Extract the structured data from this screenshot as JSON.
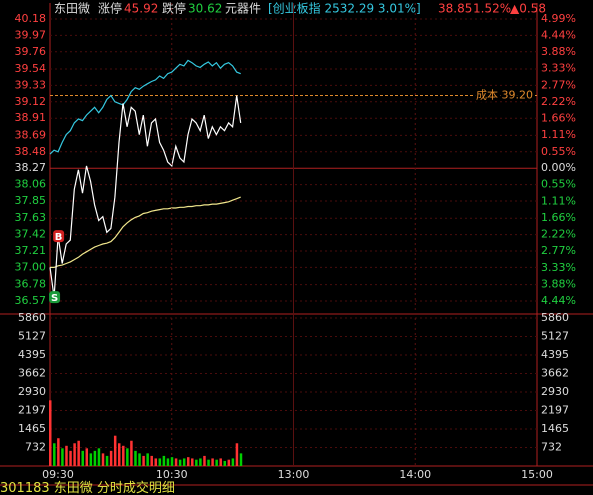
{
  "header": {
    "name": "东田微",
    "limit_up_label": "涨停",
    "limit_up": "45.92",
    "limit_down_label": "跌停",
    "limit_down": "30.62",
    "sector": "元器件",
    "index": "[创业板指 2532.29 3.01%]",
    "price": "38.85",
    "change_pct": "1.52%",
    "change": "▲0.58"
  },
  "chart_data": [
    {
      "type": "line",
      "ylim": [
        36.57,
        40.18
      ],
      "yticks": [
        40.18,
        39.97,
        39.76,
        39.54,
        39.33,
        39.12,
        38.91,
        38.69,
        38.48,
        38.27,
        38.06,
        37.85,
        37.63,
        37.42,
        37.21,
        {
          "value": 37.0,
          "label": "37.00"
        },
        36.78,
        36.57
      ],
      "y2lim": [
        -4.44,
        4.99
      ],
      "y2ticks": [
        {
          "value": 4.99,
          "label": "4.99%"
        },
        {
          "value": 4.44,
          "label": "4.44%"
        },
        {
          "value": 3.88,
          "label": "3.88%"
        },
        {
          "value": 3.33,
          "label": "3.33%"
        },
        {
          "value": 2.77,
          "label": "2.77%"
        },
        {
          "value": 2.22,
          "label": "2.22%"
        },
        {
          "value": 1.66,
          "label": "1.66%"
        },
        {
          "value": 1.11,
          "label": "1.11%"
        },
        {
          "value": 0.55,
          "label": "0.55%"
        },
        {
          "value": 0,
          "label": "0.00%"
        },
        {
          "value": -0.55,
          "label": "0.55%"
        },
        {
          "value": -1.11,
          "label": "1.11%"
        },
        {
          "value": -1.66,
          "label": "1.66%"
        },
        {
          "value": -2.22,
          "label": "2.22%"
        },
        {
          "value": -2.77,
          "label": "2.77%"
        },
        {
          "value": -3.33,
          "label": "3.33%"
        },
        {
          "value": -3.88,
          "label": "3.88%"
        },
        {
          "value": -4.44,
          "label": "4.44%"
        }
      ],
      "xlim": [
        0,
        240
      ],
      "x": [
        0,
        2,
        4,
        6,
        8,
        10,
        12,
        14,
        16,
        18,
        20,
        22,
        24,
        26,
        28,
        30,
        32,
        34,
        36,
        38,
        40,
        42,
        44,
        46,
        48,
        50,
        52,
        54,
        56,
        58,
        60,
        62,
        64,
        66,
        68,
        70,
        72,
        74,
        76,
        78,
        80,
        82,
        84,
        86,
        88,
        90,
        92,
        94
      ],
      "series": [
        {
          "color": "#35c8e0",
          "values": [
            38.45,
            38.5,
            38.48,
            38.6,
            38.7,
            38.75,
            38.85,
            38.9,
            38.88,
            38.95,
            39.0,
            39.05,
            38.98,
            39.05,
            39.15,
            39.2,
            39.12,
            39.1,
            39.08,
            39.15,
            39.25,
            39.3,
            39.28,
            39.32,
            39.35,
            39.38,
            39.4,
            39.45,
            39.42,
            39.48,
            39.5,
            39.55,
            39.6,
            39.58,
            39.65,
            39.62,
            39.58,
            39.56,
            39.6,
            39.63,
            39.58,
            39.62,
            39.55,
            39.6,
            39.62,
            39.58,
            39.5,
            39.48
          ]
        },
        {
          "color": "#f0e68c",
          "values": [
            37.0,
            37.0,
            37.02,
            37.03,
            37.05,
            37.07,
            37.1,
            37.13,
            37.17,
            37.2,
            37.23,
            37.26,
            37.28,
            37.3,
            37.31,
            37.33,
            37.38,
            37.45,
            37.52,
            37.57,
            37.61,
            37.64,
            37.66,
            37.69,
            37.7,
            37.72,
            37.73,
            37.74,
            37.75,
            37.75,
            37.76,
            37.76,
            37.77,
            37.77,
            37.78,
            37.78,
            37.79,
            37.79,
            37.8,
            37.8,
            37.81,
            37.81,
            37.82,
            37.83,
            37.84,
            37.86,
            37.88,
            37.9
          ]
        },
        {
          "color": "#ffffff",
          "values": [
            37.0,
            36.62,
            37.4,
            37.05,
            37.3,
            37.35,
            38.0,
            38.25,
            37.95,
            38.3,
            38.1,
            37.8,
            37.6,
            37.65,
            37.45,
            37.5,
            37.9,
            38.6,
            39.1,
            38.8,
            39.05,
            39.0,
            38.7,
            38.95,
            38.55,
            38.85,
            38.9,
            38.6,
            38.5,
            38.35,
            38.3,
            38.55,
            38.4,
            38.35,
            38.7,
            38.9,
            38.85,
            38.75,
            38.95,
            38.65,
            38.8,
            38.7,
            38.8,
            38.75,
            38.85,
            38.8,
            39.2,
            38.85
          ]
        }
      ],
      "cost_line": {
        "value": 39.2,
        "label": "成本 39.20",
        "color": "#e08a2c"
      },
      "annotations": [
        {
          "label": "B",
          "x": 4,
          "y": 37.4,
          "color": "#d02020"
        },
        {
          "label": "S",
          "x": 2,
          "y": 36.62,
          "color": "#1a9a3a"
        }
      ]
    },
    {
      "type": "bar",
      "ylim": [
        0,
        5860
      ],
      "yticks": [
        5860,
        5127,
        4395,
        3662,
        2930,
        2197,
        1465,
        732
      ],
      "xlim": [
        0,
        240
      ],
      "xticks": [
        {
          "value": 0,
          "label": "09:30"
        },
        {
          "value": 60,
          "label": "10:30"
        },
        {
          "value": 120,
          "label": "13:00"
        },
        {
          "value": 180,
          "label": "14:00"
        },
        {
          "value": 240,
          "label": "15:00"
        }
      ],
      "x": [
        0,
        2,
        4,
        6,
        8,
        10,
        12,
        14,
        16,
        18,
        20,
        22,
        24,
        26,
        28,
        30,
        32,
        34,
        36,
        38,
        40,
        42,
        44,
        46,
        48,
        50,
        52,
        54,
        56,
        58,
        60,
        62,
        64,
        66,
        68,
        70,
        72,
        74,
        76,
        78,
        80,
        82,
        84,
        86,
        88,
        90,
        92,
        94
      ],
      "values": [
        2600,
        900,
        1100,
        700,
        800,
        600,
        900,
        1000,
        600,
        700,
        500,
        600,
        700,
        500,
        400,
        600,
        1200,
        900,
        800,
        700,
        1000,
        600,
        500,
        400,
        500,
        400,
        300,
        300,
        400,
        300,
        350,
        300,
        250,
        300,
        350,
        300,
        250,
        300,
        400,
        250,
        300,
        250,
        300,
        200,
        250,
        300,
        900,
        500
      ],
      "up_color": "#ff3232",
      "down_color": "#00d000"
    }
  ],
  "footer": "301183 东田微 分时成交明细"
}
